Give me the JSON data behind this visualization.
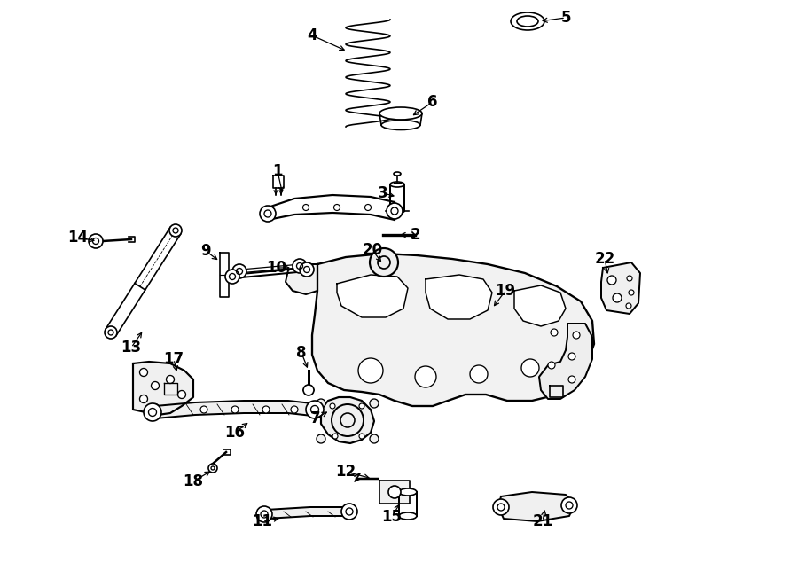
{
  "bg_color": "#ffffff",
  "line_color": "#000000",
  "fig_width": 9.0,
  "fig_height": 6.61,
  "label_positions": {
    "1": [
      313,
      193,
      319,
      220
    ],
    "2": [
      468,
      265,
      448,
      265
    ],
    "3": [
      432,
      218,
      448,
      222
    ],
    "4": [
      352,
      40,
      392,
      58
    ],
    "5": [
      638,
      20,
      608,
      24
    ],
    "6": [
      488,
      115,
      463,
      132
    ],
    "7": [
      356,
      472,
      372,
      463
    ],
    "8": [
      340,
      398,
      348,
      418
    ],
    "9": [
      232,
      283,
      248,
      295
    ],
    "10": [
      312,
      302,
      330,
      302
    ],
    "11": [
      296,
      588,
      318,
      584
    ],
    "12": [
      390,
      532,
      420,
      540
    ],
    "13": [
      148,
      392,
      162,
      372
    ],
    "14": [
      88,
      268,
      110,
      272
    ],
    "15": [
      442,
      583,
      452,
      566
    ],
    "16": [
      265,
      488,
      282,
      475
    ],
    "17": [
      196,
      405,
      200,
      422
    ],
    "18": [
      218,
      543,
      240,
      530
    ],
    "19": [
      570,
      328,
      555,
      348
    ],
    "20": [
      420,
      282,
      432,
      298
    ],
    "21": [
      612,
      588,
      615,
      572
    ],
    "22": [
      682,
      292,
      686,
      312
    ]
  }
}
